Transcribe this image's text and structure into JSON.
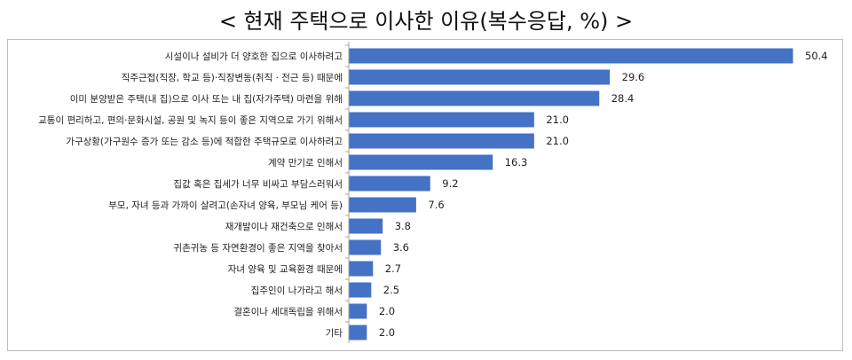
{
  "title": "< 현재 주택으로 이사한 이유(복수응답, %) >",
  "chart_data": {
    "type": "bar",
    "orientation": "horizontal",
    "title": "< 현재 주택으로 이사한 이유(복수응답, %) >",
    "unit": "%",
    "bar_color": "#4472c4",
    "xlim": [
      0,
      52
    ],
    "grid": false,
    "categories": [
      "시설이나 설비가 더 양호한 집으로 이사하려고",
      "직주근접(직장, 학교 등)·직장변동(취직 · 전근 등) 때문에",
      "이미 분양받은 주택(내 집)으로 이사 또는 내 집(자가주택) 마련을 위해",
      "교통이 편리하고, 편의·문화시설, 공원 및 녹지 등이 좋은 지역으로 가기 위해서",
      "가구상황(가구원수 증가 또는 감소 등)에 적합한 주택규모로 이사하려고",
      "계약 만기로 인해서",
      "집값 혹은 집세가 너무 비싸고 부담스러워서",
      "부모, 자녀 등과 가까이 살려고(손자녀 양육, 부모님 케어 등)",
      "재개발이나 재건축으로 인해서",
      "귀촌귀농 등 자연환경이 좋은 지역을 찾아서",
      "자녀 양육 및 교육환경 때문에",
      "집주인이 나가라고 해서",
      "결혼이나 세대독립을 위해서",
      "기타"
    ],
    "values": [
      50.4,
      29.6,
      28.4,
      21.0,
      21.0,
      16.3,
      9.2,
      7.6,
      3.8,
      3.6,
      2.7,
      2.5,
      2.0,
      2.0
    ],
    "value_labels": [
      "50.4",
      "29.6",
      "28.4",
      "21.0",
      "21.0",
      "16.3",
      "9.2",
      "7.6",
      "3.8",
      "3.6",
      "2.7",
      "2.5",
      "2.0",
      "2.0"
    ]
  }
}
